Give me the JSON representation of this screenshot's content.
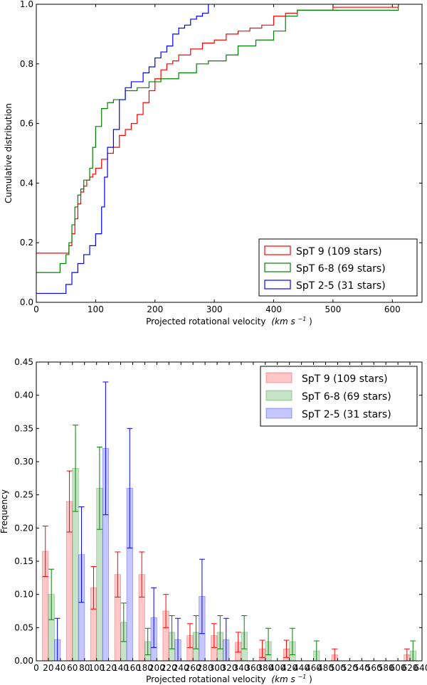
{
  "chart_data": [
    {
      "type": "line",
      "style": "step",
      "xlabel": "Projected rotational velocity",
      "xlabel_unit": "(km s",
      "xlabel_unit_exp": "−1",
      "xlabel_unit_close": ")",
      "ylabel": "Cumulative distribution",
      "xlim": [
        0,
        650
      ],
      "ylim": [
        0,
        1.0
      ],
      "xticks": [
        0,
        100,
        200,
        300,
        400,
        500,
        600
      ],
      "xtick_labels": [
        "0",
        "100",
        "200",
        "300",
        "400",
        "500",
        "600"
      ],
      "yticks": [
        0,
        0.2,
        0.4,
        0.6,
        0.8,
        1.0
      ],
      "ytick_labels": [
        "0.0",
        "0.2",
        "0.4",
        "0.6",
        "0.8",
        "1.0"
      ],
      "legend_position": "lower-right",
      "series": [
        {
          "name": "SpT 9 (109 stars)",
          "color": "#ff0000",
          "x": [
            0,
            50,
            55,
            60,
            65,
            70,
            75,
            80,
            85,
            90,
            95,
            100,
            110,
            120,
            130,
            140,
            150,
            160,
            170,
            180,
            190,
            200,
            210,
            220,
            230,
            240,
            260,
            280,
            300,
            320,
            340,
            360,
            380,
            400,
            420,
            440,
            460,
            500,
            560,
            610
          ],
          "y": [
            0.165,
            0.165,
            0.19,
            0.23,
            0.28,
            0.33,
            0.37,
            0.39,
            0.41,
            0.42,
            0.43,
            0.45,
            0.48,
            0.5,
            0.52,
            0.56,
            0.58,
            0.6,
            0.63,
            0.67,
            0.71,
            0.75,
            0.78,
            0.8,
            0.81,
            0.83,
            0.85,
            0.87,
            0.88,
            0.9,
            0.91,
            0.92,
            0.93,
            0.96,
            0.97,
            0.98,
            0.98,
            0.99,
            0.99,
            1.0
          ]
        },
        {
          "name": "SpT 6-8 (69 stars)",
          "color": "#008000",
          "x": [
            0,
            40,
            50,
            55,
            60,
            65,
            70,
            75,
            80,
            90,
            95,
            100,
            110,
            120,
            130,
            150,
            170,
            190,
            210,
            240,
            270,
            290,
            320,
            340,
            370,
            400,
            420,
            440,
            610
          ],
          "y": [
            0.1,
            0.13,
            0.16,
            0.2,
            0.26,
            0.32,
            0.36,
            0.38,
            0.41,
            0.45,
            0.52,
            0.59,
            0.65,
            0.67,
            0.68,
            0.71,
            0.72,
            0.74,
            0.75,
            0.77,
            0.8,
            0.81,
            0.83,
            0.86,
            0.88,
            0.91,
            0.96,
            0.98,
            1.0
          ]
        },
        {
          "name": "SpT 2-5 (31 stars)",
          "color": "#0000ff",
          "x": [
            0,
            50,
            60,
            70,
            80,
            90,
            100,
            110,
            115,
            120,
            130,
            140,
            150,
            160,
            180,
            190,
            200,
            210,
            220,
            230,
            240,
            250,
            260,
            270,
            280,
            290
          ],
          "y": [
            0.03,
            0.06,
            0.1,
            0.13,
            0.16,
            0.19,
            0.23,
            0.32,
            0.42,
            0.52,
            0.58,
            0.68,
            0.72,
            0.74,
            0.77,
            0.79,
            0.82,
            0.84,
            0.86,
            0.9,
            0.92,
            0.93,
            0.95,
            0.96,
            0.97,
            1.0
          ]
        }
      ]
    },
    {
      "type": "bar",
      "xlabel": "Projected rotational velocity",
      "xlabel_unit": "(km s",
      "xlabel_unit_exp": "−1",
      "xlabel_unit_close": ")",
      "ylabel": "Frequency",
      "xlim": [
        0,
        640
      ],
      "ylim": [
        0,
        0.45
      ],
      "xticks": [
        0,
        20,
        40,
        60,
        80,
        100,
        120,
        140,
        160,
        180,
        200,
        220,
        240,
        260,
        280,
        300,
        320,
        340,
        360,
        380,
        400,
        420,
        440,
        460,
        480,
        500,
        520,
        540,
        560,
        580,
        600,
        620,
        640
      ],
      "xtick_labels": [
        "0",
        "20",
        "40",
        "60",
        "80",
        "100",
        "120",
        "140",
        "160",
        "180",
        "200",
        "220",
        "240",
        "260",
        "280",
        "300",
        "320",
        "340",
        "360",
        "380",
        "400",
        "420",
        "440",
        "460",
        "480",
        "500",
        "520",
        "540",
        "560",
        "580",
        "600",
        "620",
        "640"
      ],
      "yticks": [
        0,
        0.05,
        0.1,
        0.15,
        0.2,
        0.25,
        0.3,
        0.35,
        0.4,
        0.45
      ],
      "ytick_labels": [
        "0.00",
        "0.05",
        "0.10",
        "0.15",
        "0.20",
        "0.25",
        "0.30",
        "0.35",
        "0.40",
        "0.45"
      ],
      "legend_position": "upper-right",
      "bin_width": 40,
      "series": [
        {
          "name": "SpT 9 (109 stars)",
          "color": "#ff0000",
          "bin_start": 0,
          "x": [
            15,
            55,
            95,
            135,
            175,
            215,
            255,
            295,
            335,
            375,
            415,
            455,
            495,
            535,
            575,
            615
          ],
          "values": [
            0.165,
            0.24,
            0.11,
            0.13,
            0.13,
            0.075,
            0.038,
            0.038,
            0.028,
            0.018,
            0.018,
            0,
            0.009,
            0,
            0,
            0.009
          ],
          "errors": [
            0.038,
            0.046,
            0.032,
            0.034,
            0.034,
            0.025,
            0.018,
            0.018,
            0.015,
            0.013,
            0.013,
            0,
            0.009,
            0,
            0,
            0.009
          ]
        },
        {
          "name": "SpT 6-8 (69 stars)",
          "color": "#008000",
          "bin_start": 0,
          "x": [
            25,
            65,
            105,
            145,
            185,
            225,
            265,
            305,
            345,
            385,
            425,
            465,
            505,
            545,
            585,
            625
          ],
          "values": [
            0.1,
            0.29,
            0.26,
            0.058,
            0.029,
            0.043,
            0.043,
            0.043,
            0.043,
            0.029,
            0.029,
            0.015,
            0,
            0,
            0,
            0.015
          ],
          "errors": [
            0.038,
            0.065,
            0.062,
            0.029,
            0.02,
            0.025,
            0.025,
            0.025,
            0.025,
            0.02,
            0.02,
            0.015,
            0,
            0,
            0,
            0.015
          ]
        },
        {
          "name": "SpT 2-5 (31 stars)",
          "color": "#0000ff",
          "bin_start": 0,
          "x": [
            35,
            75,
            115,
            155,
            195,
            235,
            275,
            315
          ],
          "values": [
            0.032,
            0.16,
            0.32,
            0.26,
            0.065,
            0.032,
            0.097,
            0.032
          ],
          "errors": [
            0.032,
            0.072,
            0.1,
            0.09,
            0.045,
            0.032,
            0.056,
            0.032
          ]
        }
      ]
    }
  ]
}
